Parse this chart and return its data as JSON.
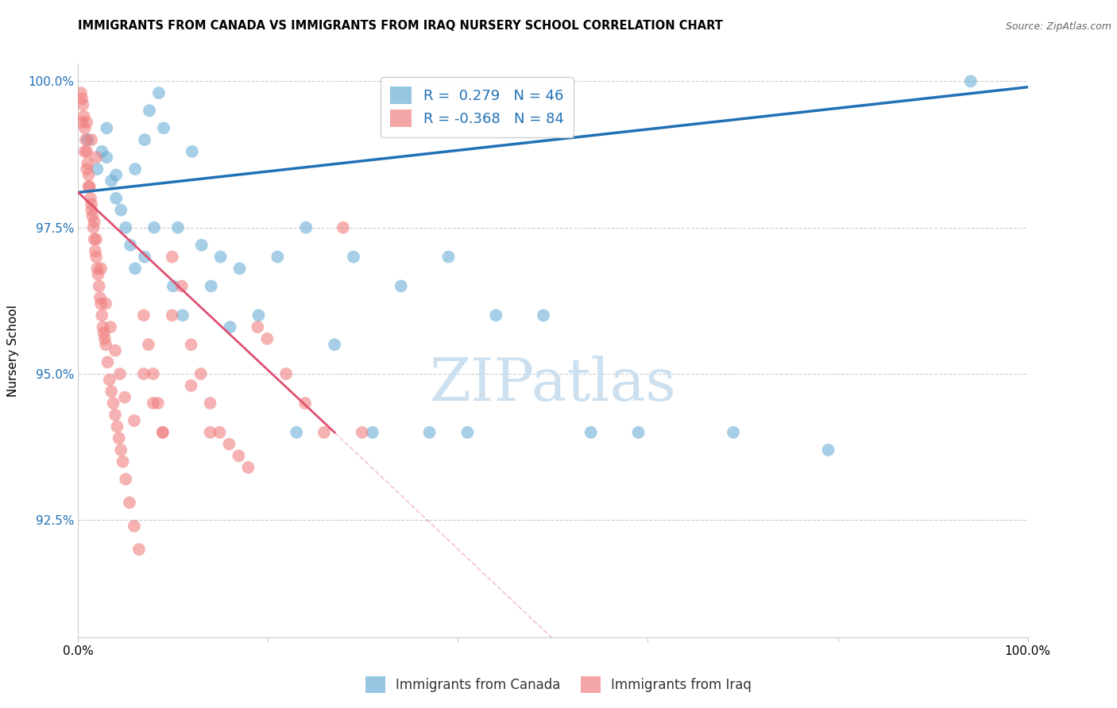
{
  "title": "IMMIGRANTS FROM CANADA VS IMMIGRANTS FROM IRAQ NURSERY SCHOOL CORRELATION CHART",
  "source": "Source: ZipAtlas.com",
  "ylabel": "Nursery School",
  "legend_labels": [
    "Immigrants from Canada",
    "Immigrants from Iraq"
  ],
  "r_canada": 0.279,
  "n_canada": 46,
  "r_iraq": -0.368,
  "n_iraq": 84,
  "canada_color": "#6baed6",
  "iraq_color": "#f08080",
  "canada_line_color": "#2171b5",
  "iraq_line_color": "#e05070",
  "xlim": [
    0.0,
    1.0
  ],
  "ylim": [
    0.905,
    1.003
  ],
  "yticks": [
    0.925,
    0.95,
    0.975,
    1.0
  ],
  "ytick_labels": [
    "92.5%",
    "95.0%",
    "97.5%",
    "100.0%"
  ],
  "xticks": [
    0.0,
    0.2,
    0.4,
    0.6,
    0.8,
    1.0
  ],
  "xtick_labels": [
    "0.0%",
    "",
    "",
    "",
    "",
    "100.0%"
  ],
  "canada_x": [
    0.01,
    0.02,
    0.025,
    0.03,
    0.03,
    0.035,
    0.04,
    0.04,
    0.045,
    0.05,
    0.055,
    0.06,
    0.06,
    0.07,
    0.07,
    0.075,
    0.08,
    0.085,
    0.09,
    0.1,
    0.105,
    0.11,
    0.12,
    0.13,
    0.14,
    0.15,
    0.16,
    0.17,
    0.19,
    0.21,
    0.23,
    0.24,
    0.27,
    0.29,
    0.31,
    0.34,
    0.37,
    0.39,
    0.41,
    0.44,
    0.49,
    0.54,
    0.59,
    0.69,
    0.79,
    0.94
  ],
  "canada_y": [
    0.99,
    0.985,
    0.988,
    0.992,
    0.987,
    0.983,
    0.98,
    0.984,
    0.978,
    0.975,
    0.972,
    0.968,
    0.985,
    0.97,
    0.99,
    0.995,
    0.975,
    0.998,
    0.992,
    0.965,
    0.975,
    0.96,
    0.988,
    0.972,
    0.965,
    0.97,
    0.958,
    0.968,
    0.96,
    0.97,
    0.94,
    0.975,
    0.955,
    0.97,
    0.94,
    0.965,
    0.94,
    0.97,
    0.94,
    0.96,
    0.96,
    0.94,
    0.94,
    0.94,
    0.937,
    1.0
  ],
  "iraq_x": [
    0.003,
    0.005,
    0.006,
    0.007,
    0.008,
    0.009,
    0.01,
    0.011,
    0.012,
    0.013,
    0.014,
    0.015,
    0.016,
    0.017,
    0.018,
    0.019,
    0.02,
    0.021,
    0.022,
    0.023,
    0.024,
    0.025,
    0.026,
    0.027,
    0.028,
    0.029,
    0.031,
    0.033,
    0.035,
    0.037,
    0.039,
    0.041,
    0.043,
    0.045,
    0.047,
    0.05,
    0.054,
    0.059,
    0.064,
    0.069,
    0.074,
    0.079,
    0.084,
    0.089,
    0.099,
    0.109,
    0.119,
    0.129,
    0.139,
    0.149,
    0.159,
    0.169,
    0.179,
    0.189,
    0.199,
    0.219,
    0.239,
    0.259,
    0.279,
    0.299,
    0.004,
    0.007,
    0.009,
    0.011,
    0.014,
    0.017,
    0.019,
    0.024,
    0.029,
    0.034,
    0.039,
    0.044,
    0.049,
    0.059,
    0.069,
    0.079,
    0.089,
    0.099,
    0.119,
    0.139,
    0.004,
    0.009,
    0.014,
    0.019
  ],
  "iraq_y": [
    0.998,
    0.996,
    0.994,
    0.992,
    0.99,
    0.988,
    0.986,
    0.984,
    0.982,
    0.98,
    0.978,
    0.977,
    0.975,
    0.973,
    0.971,
    0.97,
    0.968,
    0.967,
    0.965,
    0.963,
    0.962,
    0.96,
    0.958,
    0.957,
    0.956,
    0.955,
    0.952,
    0.949,
    0.947,
    0.945,
    0.943,
    0.941,
    0.939,
    0.937,
    0.935,
    0.932,
    0.928,
    0.924,
    0.92,
    0.96,
    0.955,
    0.95,
    0.945,
    0.94,
    0.97,
    0.965,
    0.955,
    0.95,
    0.945,
    0.94,
    0.938,
    0.936,
    0.934,
    0.958,
    0.956,
    0.95,
    0.945,
    0.94,
    0.975,
    0.94,
    0.993,
    0.988,
    0.985,
    0.982,
    0.979,
    0.976,
    0.973,
    0.968,
    0.962,
    0.958,
    0.954,
    0.95,
    0.946,
    0.942,
    0.95,
    0.945,
    0.94,
    0.96,
    0.948,
    0.94,
    0.997,
    0.993,
    0.99,
    0.987
  ]
}
